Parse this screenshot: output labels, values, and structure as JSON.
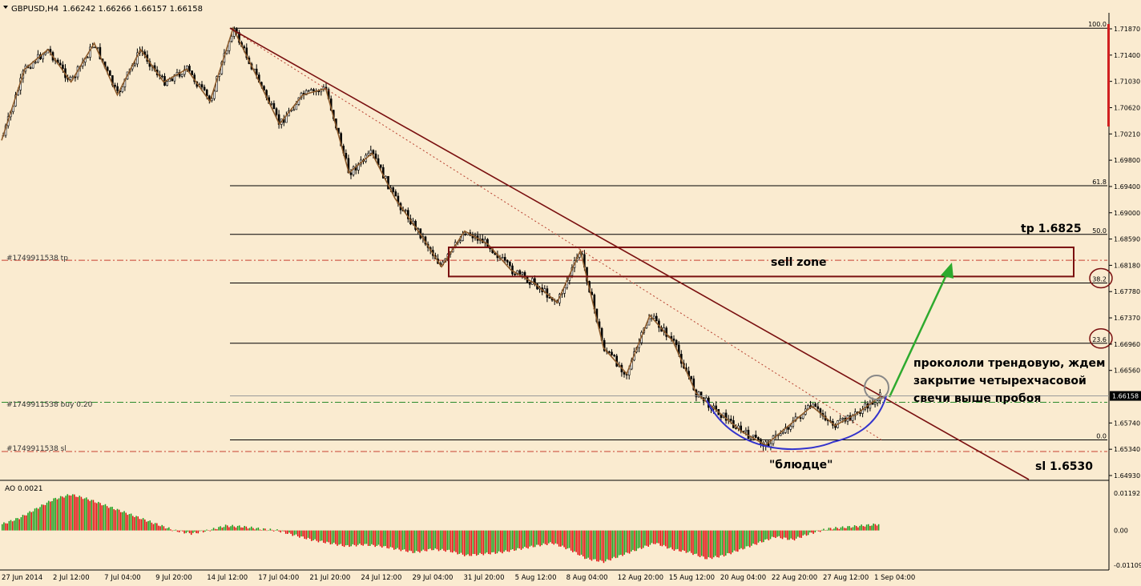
{
  "header": {
    "symbol": "GBPUSD,H4",
    "ohlc": "1.66242 1.66266 1.66157 1.66158"
  },
  "indicator": {
    "label": "AO 0.0021",
    "axis_labels": [
      "0.01192",
      "0.00",
      "-0.01109"
    ]
  },
  "price_axis": [
    "1.71870",
    "1.71400",
    "1.71030",
    "1.70620",
    "1.70210",
    "1.69800",
    "1.69400",
    "1.69000",
    "1.68590",
    "1.68180",
    "1.67780",
    "1.67370",
    "1.66960",
    "1.66560",
    "1.66158",
    "1.65740",
    "1.65340",
    "1.64930"
  ],
  "current_price": "1.66158",
  "time_axis": [
    "27 Jun 2014",
    "2 Jul 12:00",
    "7 Jul 04:00",
    "9 Jul 20:00",
    "14 Jul 12:00",
    "17 Jul 04:00",
    "21 Jul 20:00",
    "24 Jul 12:00",
    "29 Jul 04:00",
    "31 Jul 20:00",
    "5 Aug 12:00",
    "8 Aug 04:00",
    "12 Aug 20:00",
    "15 Aug 12:00",
    "20 Aug 04:00",
    "22 Aug 20:00",
    "27 Aug 12:00",
    "1 Sep 04:00"
  ],
  "fib_levels": [
    "100.0",
    "61.8",
    "50.0",
    "38.2",
    "23.6",
    "0.0"
  ],
  "order_lines": {
    "tp": "#1749911538 tp",
    "buy": "#1749911538 buy 0.20",
    "sl": "#1749911538 sl"
  },
  "annotations": {
    "tp": "tp 1.6825",
    "sell_zone": "sell zone",
    "comment_line1": "прокололи трендовую, ждем",
    "comment_line2": "закрытие четырехчасовой",
    "comment_line3": "свечи выше пробоя",
    "saucer": "\"блюдце\"",
    "sl": "sl 1.6530"
  },
  "colors": {
    "background": "#FAEBD0",
    "candle": "#000000",
    "zigzag": "#8B5A2B",
    "trendline": "#7A1010",
    "sell_zone": "#7A1010",
    "ao_up": "#1E9E1E",
    "ao_down": "#E01010",
    "arrow": "#2EAA2E",
    "saucer": "#3333CC"
  },
  "chart_data": {
    "type": "candlestick",
    "symbol": "GBPUSD",
    "timeframe": "H4",
    "ylim": [
      1.6493,
      1.7187
    ],
    "x_range": [
      "27 Jun 2014",
      "1 Sep 04:00"
    ],
    "trend_path": [
      [
        "27 Jun 2014",
        1.701
      ],
      [
        "1 Jul",
        1.712
      ],
      [
        "2 Jul 12:00",
        1.715
      ],
      [
        "3 Jul",
        1.71
      ],
      [
        "4 Jul",
        1.716
      ],
      [
        "7 Jul 04:00",
        1.708
      ],
      [
        "8 Jul",
        1.715
      ],
      [
        "9 Jul 20:00",
        1.71
      ],
      [
        "11 Jul",
        1.712
      ],
      [
        "14 Jul 12:00",
        1.707
      ],
      [
        "15 Jul",
        1.7183
      ],
      [
        "17 Jul 04:00",
        1.711
      ],
      [
        "18 Jul",
        1.7035
      ],
      [
        "21 Jul 20:00",
        1.708
      ],
      [
        "22 Jul",
        1.709
      ],
      [
        "24 Jul 12:00",
        1.696
      ],
      [
        "28 Jul",
        1.699
      ],
      [
        "29 Jul 04:00",
        1.692
      ],
      [
        "30 Jul",
        1.687
      ],
      [
        "31 Jul 20:00",
        1.6815
      ],
      [
        "4 Aug",
        1.687
      ],
      [
        "5 Aug 12:00",
        1.685
      ],
      [
        "7 Aug",
        1.681
      ],
      [
        "8 Aug 04:00",
        1.679
      ],
      [
        "11 Aug",
        1.676
      ],
      [
        "12 Aug 20:00",
        1.684
      ],
      [
        "13 Aug",
        1.669
      ],
      [
        "14 Aug",
        1.665
      ],
      [
        "15 Aug 12:00",
        1.674
      ],
      [
        "18 Aug",
        1.67
      ],
      [
        "20 Aug 04:00",
        1.662
      ],
      [
        "21 Aug",
        1.659
      ],
      [
        "22 Aug 20:00",
        1.656
      ],
      [
        "25 Aug",
        1.654
      ],
      [
        "26 Aug",
        1.657
      ],
      [
        "27 Aug 12:00",
        1.66
      ],
      [
        "28 Aug",
        1.657
      ],
      [
        "29 Aug",
        1.659
      ],
      [
        "1 Sep 04:00",
        1.6616
      ]
    ],
    "fibonacci": [
      {
        "level": "100.0",
        "price": 1.7183
      },
      {
        "level": "61.8",
        "price": 1.694
      },
      {
        "level": "50.0",
        "price": 1.6865
      },
      {
        "level": "38.2",
        "price": 1.679
      },
      {
        "level": "23.6",
        "price": 1.6697
      },
      {
        "level": "0.0",
        "price": 1.6548
      }
    ],
    "orders": {
      "tp": 1.6825,
      "buy": 1.6606,
      "sl": 1.653
    },
    "sell_zone": [
      1.68,
      1.6845
    ],
    "indicator": {
      "name": "AO",
      "last_value": 0.0021,
      "ylim": [
        -0.01109,
        0.01192
      ],
      "values": [
        0.002,
        0.004,
        0.007,
        0.01,
        0.0115,
        0.01,
        0.008,
        0.006,
        0.004,
        0.002,
        0.0,
        -0.001,
        0.0,
        0.0015,
        0.0012,
        0.0005,
        0.0,
        -0.0015,
        -0.003,
        -0.004,
        -0.005,
        -0.0045,
        -0.005,
        -0.006,
        -0.007,
        -0.006,
        -0.0065,
        -0.008,
        -0.0075,
        -0.007,
        -0.006,
        -0.005,
        -0.004,
        -0.006,
        -0.009,
        -0.01,
        -0.008,
        -0.006,
        -0.004,
        -0.006,
        -0.007,
        -0.009,
        -0.008,
        -0.006,
        -0.004,
        -0.002,
        -0.003,
        -0.001,
        0.0005,
        0.001,
        0.0015,
        0.002
      ]
    }
  }
}
